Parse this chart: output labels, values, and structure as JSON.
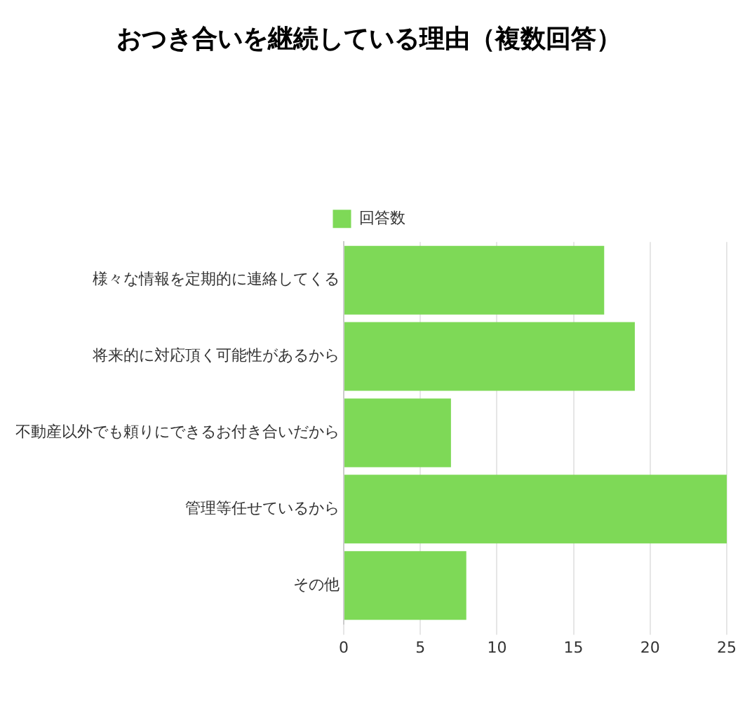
{
  "chart_data": {
    "type": "bar",
    "orientation": "horizontal",
    "title": "おつき合いを継続している理由（複数回答）",
    "categories": [
      "様々な情報を定期的に連絡してくる",
      "将来的に対応頂く可能性があるから",
      "不動産以外でも頼りにできるお付き合いだから",
      "管理等任せているから",
      "その他"
    ],
    "series": [
      {
        "name": "回答数",
        "color": "#7ed957",
        "values": [
          17,
          19,
          7,
          25,
          8
        ]
      }
    ],
    "xlim": [
      0,
      25
    ],
    "xticks": [
      0,
      5,
      10,
      15,
      20,
      25
    ],
    "grid": "x",
    "legend": "top"
  }
}
